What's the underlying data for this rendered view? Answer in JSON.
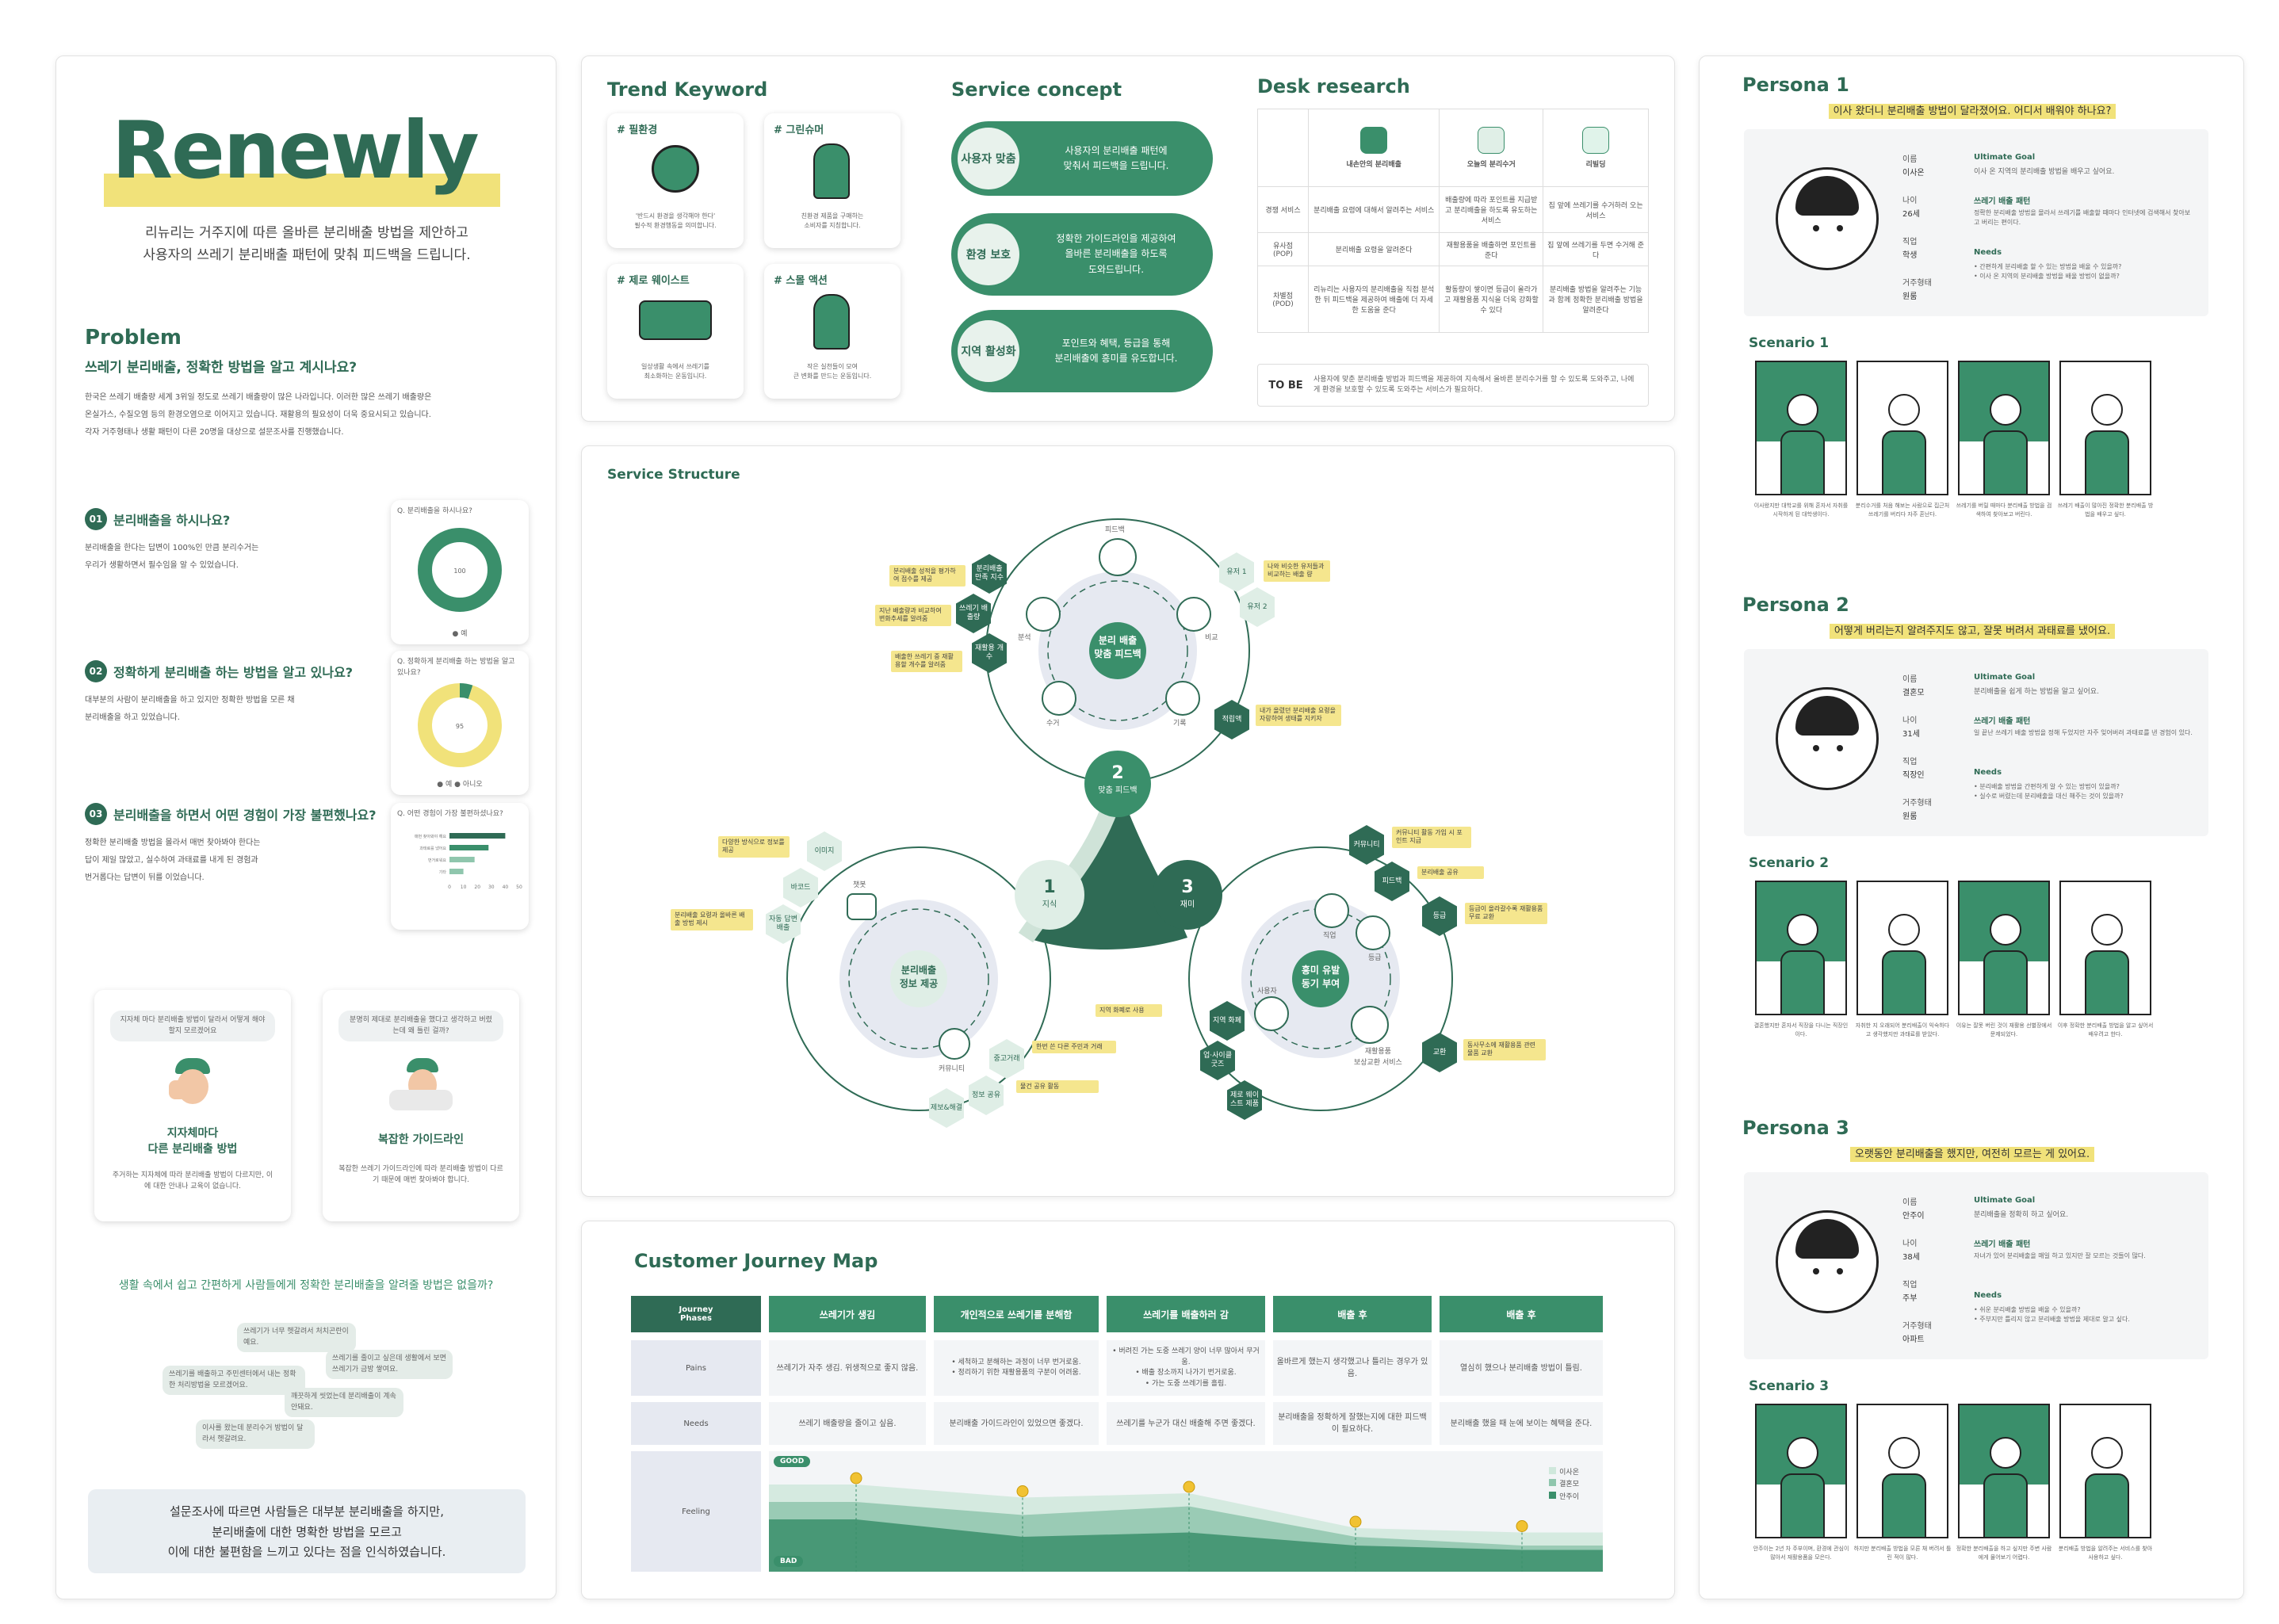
{
  "left": {
    "logo": "Renewly",
    "tagline_1": "리뉴리는 거주지에 따른 올바른 분리배출 방법을 제안하고",
    "tagline_2": "사용자의 쓰레기 분리배출 패턴에 맞춰 피드백을 드립니다.",
    "problem_title": "Problem",
    "problem_question": "쓰레기 분리배출, 정확한 방법을 알고 계시나요?",
    "problem_body": "한국은 쓰레기 배출량 세계 3위일 정도로 쓰레기 배출량이 많은 나라입니다. 이러한 많은 쓰레기 배출량은 온실가스, 수질오염 등의 환경오염으로 이어지고 있습니다. 재활용의 필요성이 더욱 중요시되고 있습니다. 각자 거주형태나 생활 패턴이 다른 20명을 대상으로 설문조사를 진행했습니다.",
    "questions": [
      {
        "num": "01",
        "title": "분리배출을 하시나요?",
        "body": "분리배출을 한다는 답변이 100%인 만큼 분리수거는 우리가 생활하면서 필수임을 알 수 있었습니다.",
        "chart_q": "Q. 분리배출을 하시나요?",
        "legend": "● 예"
      },
      {
        "num": "02",
        "title": "정확하게 분리배출 하는 방법을 알고 있나요?",
        "body": "대부분의 사람이 분리배출을 하고 있지만 정확한 방법을 모른 채 분리배출을 하고 있었습니다.",
        "chart_q": "Q. 정확하게 분리배출 하는 방법을 알고 있나요?",
        "legend": "● 예 ● 아니오"
      },
      {
        "num": "03",
        "title": "분리배출을 하면서 어떤 경험이 가장 불편했나요?",
        "body": "정확한 분리배출 방법을 몰라서 매번 찾아봐야 한다는 답이 제일 많았고, 실수하여 과태료를 내게 된 경험과 번거롭다는 답변이 뒤를 이었습니다.",
        "chart_q": "Q. 어떤 경험이 가장 불편하셨나요?"
      }
    ],
    "insight_cards": [
      {
        "bubble": "지자체 마다 분리배출 방법이 달라서 어떻게 해야 할지 모르겠어요",
        "title": "지자체마다\n다른 분리배출 방법",
        "desc": "주거하는 지자체에 따라 분리배출 방법이 다르지만, 이에 대한 안내나 교육이 없습니다."
      },
      {
        "bubble": "분명히 제대로 분리배출을 했다고 생각하고 버렸는데 왜 틀린 걸까?",
        "title": "복잡한 가이드라인",
        "desc": "복잡한 쓰레기 가이드라인에 따라 분리배출 방법이 다르기 때문에 매번 찾아봐야 합니다."
      }
    ],
    "summary_question": "생활 속에서 쉽고 간편하게 사람들에게 정확한 분리배출을 알려줄 방법은 없을까?",
    "bubbles": [
      "쓰레기가 너무 헷갈려서 처치곤란이예요.",
      "쓰레기를 줄이고 싶은데 생활에서 보면 쓰레기가 금방 쌓여요.",
      "쓰레기를 배출하고 주민센터에서 내는 정확한 처리방법을 모르겠어요.",
      "깨끗하게 씻었는데 분리배출이 계속 안돼요.",
      "이사를 왔는데 분리수거 방법이 달라서 헷갈려요."
    ],
    "conclusion_1": "설문조사에 따르면 사람들은 대부분 분리배출을 하지만,",
    "conclusion_2": "분리배출에 대한 명확한 방법을 모르고",
    "conclusion_3": "이에 대한 불편함을 느끼고 있다는 점을 인식하였습니다."
  },
  "trend": {
    "title": "Trend Keyword",
    "items": [
      {
        "tag": "# 필환경",
        "desc": "'반드시 환경을 생각해야 한다'\n필수적 환경행동을 의미합니다."
      },
      {
        "tag": "# 그린슈머",
        "desc": "친환경 제품을 구매하는\n소비자를 지칭합니다."
      },
      {
        "tag": "# 제로 웨이스트",
        "desc": "일상생활 속에서 쓰레기를\n최소화하는 운동입니다."
      },
      {
        "tag": "# 스몰 액션",
        "desc": "작은 실천들이 모여\n큰 변화를 만드는 운동입니다."
      }
    ]
  },
  "concept": {
    "title": "Service concept",
    "items": [
      {
        "label": "사용자 맞춤",
        "text": "사용자의 분리배출 패턴에\n맞춰서 피드백을 드립니다."
      },
      {
        "label": "환경 보호",
        "text": "정확한 가이드라인을 제공하여\n올바른 분리배출을 하도록\n도와드립니다."
      },
      {
        "label": "지역 활성화",
        "text": "포인트와 혜택, 등급을 통해\n분리배출에 흥미를 유도합니다."
      }
    ]
  },
  "desk": {
    "title": "Desk research",
    "cols": [
      "내손안의 분리배출",
      "오늘의 분리수거",
      "리빌딩"
    ],
    "rows": [
      {
        "head": "경쟁 서비스",
        "cells": [
          "분리배출 요령에 대해서 알려주는 서비스",
          "배출량에 따라 포인트를 지급받고 분리배출을 하도록 유도하는 서비스",
          "집 앞에 쓰레기를 수거하러 오는 서비스"
        ]
      },
      {
        "head": "유사점\n(POP)",
        "cells": [
          "분리배출 요령을 알려준다",
          "재활용품을 배출하면 포인트를 준다",
          "집 앞에 쓰레기를 두면 수거해 준다"
        ]
      },
      {
        "head": "차별점\n(POD)",
        "cells": [
          "리뉴리는 사용자의 분리배출을 직접 분석한 뒤 피드백을 제공하여 배출에 더 자세한 도움을 준다",
          "활동량이 쌓이면 등급이 올라가고 재활용품 지식을 더욱 강화할 수 있다",
          "분리배출 방법을 알려주는 기능과 함께 정확한 분리배출 방법을 알려준다"
        ]
      }
    ],
    "tobe_label": "TO BE",
    "tobe_text": "사용자에 맞춘 분리배출 방법과 피드백을 제공하여 지속해서 올바른 분리수거를 할 수 있도록 도와주고, 나에게 환경을 보호할 수 있도록 도와주는 서비스가 필요하다."
  },
  "structure": {
    "title": "Service Structure",
    "center_nodes": [
      {
        "label": "분리 배출\n맞춤 피드백"
      },
      {
        "label": "분리배출\n정보 제공"
      },
      {
        "label": "흥미 유발\n동기 부여"
      }
    ],
    "numbers": [
      {
        "n": "1",
        "label": "지식"
      },
      {
        "n": "2",
        "label": "맞춤 피드백"
      },
      {
        "n": "3",
        "label": "재미"
      }
    ],
    "top_labels": [
      "피드백",
      "분석",
      "비교",
      "수거",
      "기록"
    ],
    "left_labels": [
      "챗봇",
      "커뮤니티"
    ],
    "right_labels": [
      "직업",
      "등급",
      "사용자",
      "재활용품\n보상교환 서비스"
    ],
    "hex_top": [
      "분리배출 만족 지수",
      "쓰레기 배출량",
      "재활용 개수",
      "적립액"
    ],
    "hex_left": [
      "이미지",
      "바코드",
      "자동 답변 배출",
      "중고거래",
      "정보 공유",
      "제보&해결"
    ],
    "hex_right": [
      "커뮤니티",
      "피드백",
      "등급",
      "교환",
      "지역 화폐",
      "업·사이클 굿즈",
      "제로 웨이스트 제품"
    ],
    "hex_top_right": [
      "유저 1",
      "유저 2"
    ],
    "notes": [
      "분리배출 성적을 평가하여 점수를 제공",
      "지난 배출량과 비교하여 변화추세를 알려줌",
      "배출한 쓰레기 중 재활용할 개수를 알려줌",
      "나와 비슷한 유저들과 비교하는 배출 량",
      "내가 올렸던 분리배출 요령을 자랑하여 생태를 지키자",
      "다양한 방식으로 정보를 제공",
      "분리배출 요령과 올바른 배출 방법 제시",
      "한번 쓴 다른 주민과 거래",
      "물건 공유 활동",
      "커뮤니티 활동 가입 시 포인트 지급",
      "분리배출 공유",
      "등급이 올라갈수록 재활용품 무료 교환",
      "지역 화폐로 사용",
      "동사무소에 재활용품 관련 물품 교환"
    ]
  },
  "journey": {
    "title": "Customer Journey Map",
    "phase_label": "Journey\nPhases",
    "phases": [
      "쓰레기가 생김",
      "개인적으로 쓰레기를 분해함",
      "쓰레기를 배출하러 감",
      "배출 후",
      "배출 후"
    ],
    "pains_label": "Pains",
    "pains": [
      "쓰레기가 자주 생김. 위생적으로 좋지 않음.",
      "• 세척하고 분해하는 과정이 너무 번거로움.\n• 정리하기 위한 재활용품의 구분이 어려움.",
      "• 버려진 가는 도중 쓰레기 양이 너무 많아서 무거움.\n• 배출 장소까지 나가기 번거로움.\n• 가는 도중 쓰레기를 흘림.",
      "올바르게 했는지 생각했고나 틀리는 경우가 있음.",
      "열심히 했으나 분리배출 방법이 틀림."
    ],
    "needs_label": "Needs",
    "needs": [
      "쓰레기 배출량을 줄이고 싶음.",
      "분리배출 가이드라인이 있었으면 좋겠다.",
      "쓰레기를 누군가 대신 배출해 주면 좋겠다.",
      "분리배출을 정확하게 잘했는지에 대한 피드백이 필요하다.",
      "분리배출 했을 때 눈에 보이는 혜택을 준다."
    ],
    "feeling_label": "Feeling",
    "good": "GOOD",
    "bad": "BAD",
    "legend": [
      "이사온",
      "결혼모",
      "안주이"
    ]
  },
  "personas": [
    {
      "title": "Persona 1",
      "quote": "이사 왔더니 분리배출 방법이 달라졌어요. 어디서 배워야 하나요?",
      "fields": [
        [
          "이름",
          "이사온"
        ],
        [
          "나이",
          "26세"
        ],
        [
          "직업",
          "학생"
        ],
        [
          "거주형태",
          "원룸"
        ]
      ],
      "goal_head": "Ultimate Goal",
      "goal": "이사 온 지역의 분리배출 방법을 배우고 싶어요.",
      "pattern_head": "쓰레기 배출 패턴",
      "pattern": "정확한 분리배출 방법을 몰라서 쓰레기를 배출할 때마다 인터넷에 검색해서 찾아보고 버리는 편이다.",
      "needs_head": "Needs",
      "needs": "• 간편하게 분리배출 할 수 있는 방법을 배울 수 있을까?\n• 이사 온 지역의 분리배출 방법을 배울 방법이 없을까?",
      "scenario": "Scenario 1",
      "captions": [
        "이사왔지만 대학교를 위해 혼자서 자취를 시작하게 된 대학생이다.",
        "분리수거를 처음 해보는 사람으로 집근처 쓰레기를 버리다 자주 혼난다.",
        "쓰레기를 버릴 때마다 분리배출 방법을 검색하여 찾아보고 버린다.",
        "쓰레기 배출이 많아진 정확한 분리배출 방법을 배우고 싶다."
      ]
    },
    {
      "title": "Persona 2",
      "quote": "어떻게 버리는지 알려주지도 않고, 잘못 버려서 과태료를 냈어요.",
      "fields": [
        [
          "이름",
          "결혼모"
        ],
        [
          "나이",
          "31세"
        ],
        [
          "직업",
          "직장인"
        ],
        [
          "거주형태",
          "원룸"
        ]
      ],
      "goal_head": "Ultimate Goal",
      "goal": "분리배출을 쉽게 하는 방법을 알고 싶어요.",
      "pattern_head": "쓰레기 배출 패턴",
      "pattern": "일 끝난 쓰레기 배출 방법을 정해 두었지만 자주 잊어버려 과태료를 낸 경험이 있다.",
      "needs_head": "Needs",
      "needs": "• 분리배출 방법을 간편하게 알 수 있는 방법이 있을까?\n• 실수로 버렸는데 분리배출을 대신 해주는 것이 있을까?",
      "scenario": "Scenario 2",
      "captions": [
        "결혼했지만 혼자서 직장을 다니는 직장인이다.",
        "자취한 지 오래되어 분리배출이 익숙하다고 생각했지만 과태료를 받았다.",
        "이유는 잘못 버린 것이 재활용 선별장에서 문제되었다.",
        "이후 정확한 분리배출 방법을 알고 싶어서 배우려고 한다."
      ]
    },
    {
      "title": "Persona 3",
      "quote": "오랫동안 분리배출을 했지만, 여전히 모르는 게 있어요.",
      "fields": [
        [
          "이름",
          "안주이"
        ],
        [
          "나이",
          "38세"
        ],
        [
          "직업",
          "주부"
        ],
        [
          "거주형태",
          "아파트"
        ]
      ],
      "goal_head": "Ultimate Goal",
      "goal": "분리배출을 정확히 하고 싶어요.",
      "pattern_head": "쓰레기 배출 패턴",
      "pattern": "자녀가 있어 분리배출을 매일 하고 있지만 잘 모르는 것들이 많다.",
      "needs_head": "Needs",
      "needs": "• 쉬운 분리배출 방법을 배울 수 있을까?\n• 주부지만 틀리지 않고 분리배출 방법을 제대로 알고 싶다.",
      "scenario": "Scenario 3",
      "captions": [
        "안주이는 2년 차 주부이며, 환경에 관심이 많아서 재활용품을 모은다.",
        "하지만 분리배출 방법을 모른 채 버려서 틀린 적이 많다.",
        "정확한 분리배출을 하고 싶지만 주변 사람에게 물어보기 어렵다.",
        "분리배출 방법을 알려주는 서비스를 찾아 사용하고 싶다."
      ]
    }
  ],
  "chart_data": [
    {
      "type": "pie",
      "title": "Q. 분리배출을 하시나요?",
      "categories": [
        "예"
      ],
      "values": [
        100
      ]
    },
    {
      "type": "pie",
      "title": "Q. 정확하게 분리배출 하는 방법을 알고 있나요?",
      "categories": [
        "예",
        "아니오"
      ],
      "values": [
        5,
        95
      ]
    },
    {
      "type": "bar",
      "title": "Q. 어떤 경험이 가장 불편하셨나요?",
      "categories": [
        "매번 찾아봐야 해요",
        "과태료를 냈어요",
        "번거로워요",
        "기타"
      ],
      "values": [
        40,
        28,
        18,
        10
      ],
      "xlim": [
        0,
        50
      ],
      "ticks": [
        "0",
        "10",
        "20",
        "30",
        "40",
        "50"
      ]
    },
    {
      "type": "area",
      "title": "Feeling",
      "x": [
        "쓰레기가 생김",
        "개인적으로 쓰레기를 분해함",
        "쓰레기를 배출하러 감",
        "배출 후",
        "배출 후"
      ],
      "series": [
        {
          "name": "이사온",
          "values": [
            0.8,
            0.65,
            0.7,
            0.3,
            0.25
          ]
        },
        {
          "name": "결혼모",
          "values": [
            0.6,
            0.45,
            0.55,
            0.2,
            0.1
          ]
        },
        {
          "name": "안주이",
          "values": [
            0.4,
            0.2,
            0.25,
            0.1,
            0.05
          ]
        }
      ]
    }
  ],
  "colors": {
    "primary": "#2f6b55",
    "accent": "#3a8f6b",
    "highlight": "#f1e27a",
    "light": "#e8f2ec"
  }
}
